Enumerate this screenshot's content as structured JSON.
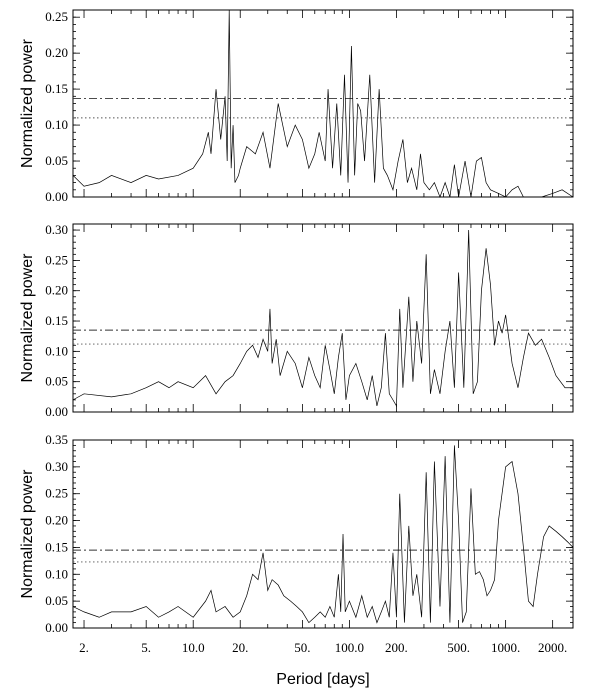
{
  "chart_data": [
    {
      "type": "line",
      "panel": "top",
      "xscale": "log",
      "xlim": [
        1.7,
        2700
      ],
      "ylim": [
        0,
        0.26
      ],
      "ylabel": "Normalized power",
      "yticks": [
        "0.00",
        "0.05",
        "0.10",
        "0.15",
        "0.20",
        "0.25"
      ],
      "yticks_values": [
        0,
        0.05,
        0.1,
        0.15,
        0.2,
        0.25
      ],
      "thresholds": [
        0.137,
        0.11
      ],
      "series": [
        {
          "x": [
            1.7,
            2.0,
            2.5,
            3.0,
            4.0,
            5.0,
            6.0,
            8.0,
            10.0,
            11.5,
            12.5,
            13.0,
            14.0,
            15.0,
            16.0,
            16.5,
            17.0,
            17.5,
            18.0,
            18.5,
            19.5,
            20.0,
            22.0,
            25.0,
            28.0,
            31.0,
            35.0,
            40.0,
            45.0,
            50.0,
            55.0,
            60.0,
            64.0,
            70.0,
            73.0,
            78.0,
            83.0,
            88.0,
            93.0,
            98.0,
            103.0,
            108.0,
            113.0,
            118.0,
            125.0,
            135.0,
            145.0,
            155.0,
            165.0,
            175.0,
            190.0,
            205.0,
            220.0,
            235.0,
            250.0,
            270.0,
            285.0,
            300.0,
            325.0,
            350.0,
            380.0,
            410.0,
            440.0,
            470.0,
            500.0,
            550.0,
            600.0,
            650.0,
            700.0,
            750.0,
            800.0,
            900.0,
            1000.0,
            1100.0,
            1200.0,
            1300.0,
            1500.0,
            1700.0,
            2000.0,
            2300.0,
            2700.0
          ],
          "y": [
            0.03,
            0.015,
            0.02,
            0.03,
            0.02,
            0.03,
            0.025,
            0.03,
            0.04,
            0.06,
            0.09,
            0.06,
            0.15,
            0.08,
            0.14,
            0.05,
            0.26,
            0.04,
            0.1,
            0.02,
            0.03,
            0.04,
            0.07,
            0.06,
            0.09,
            0.04,
            0.13,
            0.07,
            0.1,
            0.08,
            0.04,
            0.06,
            0.09,
            0.05,
            0.15,
            0.04,
            0.13,
            0.03,
            0.17,
            0.02,
            0.21,
            0.03,
            0.13,
            0.12,
            0.05,
            0.17,
            0.02,
            0.15,
            0.04,
            0.03,
            0.01,
            0.05,
            0.08,
            0.02,
            0.04,
            0.01,
            0.06,
            0.02,
            0.01,
            0.02,
            0.0,
            0.02,
            0.0,
            0.045,
            0.0,
            0.05,
            0.0,
            0.05,
            0.055,
            0.02,
            0.01,
            0.005,
            0.0,
            0.01,
            0.015,
            0.0,
            0.0,
            0.0,
            0.005,
            0.01,
            0.0
          ]
        }
      ]
    },
    {
      "type": "line",
      "panel": "middle",
      "xscale": "log",
      "xlim": [
        1.7,
        2700
      ],
      "ylim": [
        0,
        0.31
      ],
      "ylabel": "Normalized power",
      "yticks": [
        "0.00",
        "0.05",
        "0.10",
        "0.15",
        "0.20",
        "0.25",
        "0.30"
      ],
      "yticks_values": [
        0,
        0.05,
        0.1,
        0.15,
        0.2,
        0.25,
        0.3
      ],
      "thresholds": [
        0.135,
        0.112
      ],
      "series": [
        {
          "x": [
            1.7,
            2.0,
            3.0,
            4.0,
            5.0,
            6.0,
            7.0,
            8.0,
            10.0,
            12.0,
            14.0,
            16.0,
            18.0,
            20.0,
            22.0,
            24.0,
            26.0,
            28.0,
            30.0,
            31.0,
            32.0,
            34.0,
            36.0,
            40.0,
            45.0,
            50.0,
            55.0,
            60.0,
            65.0,
            70.0,
            75.0,
            80.0,
            85.0,
            90.0,
            95.0,
            100.0,
            110.0,
            120.0,
            130.0,
            140.0,
            150.0,
            160.0,
            170.0,
            180.0,
            190.0,
            200.0,
            210.0,
            220.0,
            240.0,
            255.0,
            270.0,
            290.0,
            310.0,
            330.0,
            350.0,
            380.0,
            410.0,
            440.0,
            470.0,
            500.0,
            540.0,
            580.0,
            620.0,
            660.0,
            700.0,
            750.0,
            800.0,
            850.0,
            900.0,
            950.0,
            1000.0,
            1050.0,
            1100.0,
            1200.0,
            1300.0,
            1400.0,
            1550.0,
            1700.0,
            1900.0,
            2100.0,
            2400.0,
            2700.0
          ],
          "y": [
            0.02,
            0.03,
            0.025,
            0.03,
            0.04,
            0.05,
            0.04,
            0.05,
            0.04,
            0.06,
            0.03,
            0.05,
            0.06,
            0.08,
            0.1,
            0.11,
            0.09,
            0.12,
            0.1,
            0.17,
            0.08,
            0.12,
            0.06,
            0.1,
            0.08,
            0.04,
            0.09,
            0.06,
            0.04,
            0.11,
            0.07,
            0.03,
            0.09,
            0.13,
            0.02,
            0.06,
            0.08,
            0.05,
            0.02,
            0.06,
            0.01,
            0.04,
            0.13,
            0.03,
            0.02,
            0.01,
            0.17,
            0.04,
            0.19,
            0.05,
            0.15,
            0.08,
            0.26,
            0.03,
            0.07,
            0.03,
            0.1,
            0.15,
            0.04,
            0.23,
            0.04,
            0.3,
            0.03,
            0.05,
            0.2,
            0.27,
            0.21,
            0.11,
            0.15,
            0.13,
            0.16,
            0.12,
            0.08,
            0.04,
            0.09,
            0.13,
            0.11,
            0.12,
            0.09,
            0.06,
            0.04,
            0.04
          ]
        }
      ]
    },
    {
      "type": "line",
      "panel": "bottom",
      "xscale": "log",
      "xlim": [
        1.7,
        2700
      ],
      "ylim": [
        0,
        0.35
      ],
      "ylabel": "Normalized power",
      "xlabel": "Period [days]",
      "yticks": [
        "0.00",
        "0.05",
        "0.10",
        "0.15",
        "0.20",
        "0.25",
        "0.30",
        "0.35"
      ],
      "yticks_values": [
        0,
        0.05,
        0.1,
        0.15,
        0.2,
        0.25,
        0.3,
        0.35
      ],
      "xticks": [
        "2.",
        "5.",
        "10.0",
        "20.",
        "50.",
        "100.0",
        "200.",
        "500.",
        "1000.",
        "2000."
      ],
      "xticks_values": [
        2,
        5,
        10,
        20,
        50,
        100,
        200,
        500,
        1000,
        2000
      ],
      "thresholds": [
        0.145,
        0.123
      ],
      "series": [
        {
          "x": [
            1.7,
            2.0,
            2.5,
            3.0,
            4.0,
            5.0,
            6.0,
            7.0,
            8.0,
            10.0,
            12.0,
            13.0,
            14.0,
            16.0,
            18.0,
            20.0,
            22.0,
            24.0,
            26.0,
            28.0,
            30.0,
            32.0,
            35.0,
            38.0,
            42.0,
            46.0,
            50.0,
            55.0,
            60.0,
            65.0,
            70.0,
            75.0,
            80.0,
            85.0,
            88.0,
            91.0,
            94.0,
            100.0,
            110.0,
            120.0,
            130.0,
            140.0,
            150.0,
            160.0,
            170.0,
            180.0,
            190.0,
            200.0,
            210.0,
            225.0,
            240.0,
            255.0,
            270.0,
            290.0,
            310.0,
            330.0,
            350.0,
            380.0,
            410.0,
            440.0,
            470.0,
            500.0,
            530.0,
            560.0,
            600.0,
            640.0,
            680.0,
            720.0,
            760.0,
            800.0,
            850.0,
            900.0,
            1000.0,
            1100.0,
            1200.0,
            1300.0,
            1400.0,
            1500.0,
            1600.0,
            1750.0,
            1900.0,
            2100.0,
            2300.0,
            2500.0,
            2700.0
          ],
          "y": [
            0.04,
            0.03,
            0.02,
            0.03,
            0.03,
            0.04,
            0.02,
            0.03,
            0.04,
            0.02,
            0.05,
            0.07,
            0.03,
            0.04,
            0.02,
            0.03,
            0.06,
            0.1,
            0.09,
            0.14,
            0.07,
            0.09,
            0.08,
            0.06,
            0.05,
            0.04,
            0.03,
            0.01,
            0.02,
            0.03,
            0.02,
            0.04,
            0.02,
            0.1,
            0.03,
            0.175,
            0.03,
            0.05,
            0.02,
            0.06,
            0.02,
            0.04,
            0.01,
            0.03,
            0.05,
            0.02,
            0.14,
            0.02,
            0.25,
            0.01,
            0.19,
            0.06,
            0.1,
            0.02,
            0.29,
            0.01,
            0.31,
            0.04,
            0.32,
            0.01,
            0.34,
            0.2,
            0.01,
            0.03,
            0.26,
            0.1,
            0.105,
            0.09,
            0.06,
            0.07,
            0.09,
            0.2,
            0.3,
            0.31,
            0.25,
            0.15,
            0.05,
            0.04,
            0.1,
            0.17,
            0.19,
            0.18,
            0.17,
            0.16,
            0.15
          ]
        }
      ]
    }
  ]
}
